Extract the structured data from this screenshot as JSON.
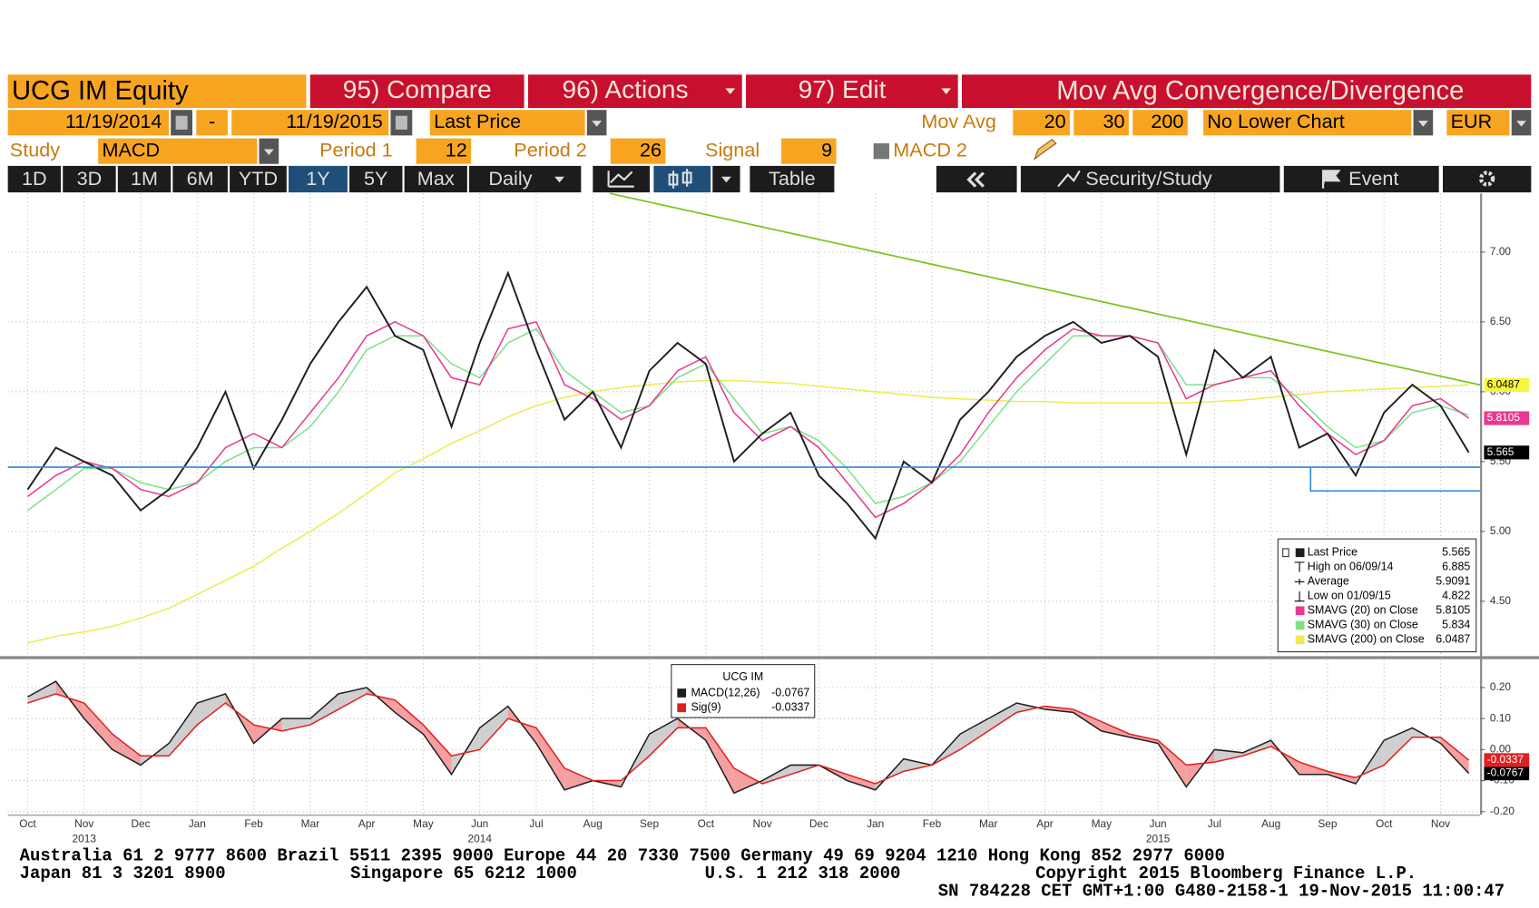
{
  "toolbar": {
    "ticker": "UCG IM Equity",
    "compare": "95) Compare",
    "actions": "96) Actions",
    "edit": "97) Edit",
    "study_title": "Mov Avg Convergence/Divergence",
    "start_date": "11/19/2014",
    "dash": "-",
    "end_date": "11/19/2015",
    "field": "Last Price",
    "mov_avg_label": "Mov Avg",
    "mov_avgs": [
      20,
      30,
      200
    ],
    "lower_chart": "No Lower Chart",
    "currency": "EUR",
    "study_label": "Study",
    "study": "MACD",
    "period1_label": "Period 1",
    "period1": 12,
    "period2_label": "Period 2",
    "period2": 26,
    "signal_label": "Signal",
    "signal": 9,
    "macd2": "MACD 2",
    "ranges": [
      "1D",
      "3D",
      "1M",
      "6M",
      "YTD",
      "1Y",
      "5Y",
      "Max"
    ],
    "frequency": "Daily",
    "table": "Table",
    "security_study": "Security/Study",
    "event": "Event"
  },
  "chart_data": [
    {
      "type": "line",
      "grid": true,
      "xlim": [
        -0.35,
        25.7
      ],
      "ylim": [
        4.11,
        7.42
      ],
      "yticks": [
        {
          "value": 4.5,
          "label": "4.50"
        },
        {
          "value": 5,
          "label": "5.00"
        },
        {
          "value": 5.5,
          "label": "5.50"
        },
        {
          "value": 6,
          "label": "6.00"
        },
        {
          "value": 6.5,
          "label": "6.50"
        },
        {
          "value": 7,
          "label": "7.00"
        }
      ],
      "x": [
        0,
        0.5,
        1,
        1.5,
        2,
        2.5,
        3,
        3.5,
        4,
        4.5,
        5,
        5.5,
        6,
        6.5,
        7,
        7.5,
        8,
        8.5,
        9,
        9.5,
        10,
        10.5,
        11,
        11.5,
        12,
        12.5,
        13,
        13.5,
        14,
        14.5,
        15,
        15.5,
        16,
        16.5,
        17,
        17.5,
        18,
        18.5,
        19,
        19.5,
        20,
        20.5,
        21,
        21.5,
        22,
        22.5,
        23,
        23.5,
        24,
        24.5,
        25,
        25.5
      ],
      "series": [
        {
          "name": "Last Price",
          "color": "#1f1f1f",
          "values": [
            5.3,
            5.6,
            5.5,
            5.4,
            5.15,
            5.3,
            5.6,
            6.0,
            5.45,
            5.8,
            6.2,
            6.5,
            6.75,
            6.4,
            6.3,
            5.75,
            6.35,
            6.85,
            6.3,
            5.8,
            6.0,
            5.6,
            6.15,
            6.35,
            6.2,
            5.5,
            5.7,
            5.85,
            5.4,
            5.2,
            4.95,
            5.5,
            5.35,
            5.8,
            6.0,
            6.25,
            6.4,
            6.5,
            6.35,
            6.4,
            6.25,
            5.55,
            6.3,
            6.1,
            6.25,
            5.6,
            5.7,
            5.4,
            5.85,
            6.05,
            5.9,
            5.565
          ]
        },
        {
          "name": "SMAVG (20) on Close",
          "color": "#e8388f",
          "values": [
            5.25,
            5.4,
            5.5,
            5.45,
            5.3,
            5.25,
            5.35,
            5.6,
            5.7,
            5.6,
            5.85,
            6.1,
            6.4,
            6.5,
            6.4,
            6.1,
            6.05,
            6.45,
            6.5,
            6.05,
            5.95,
            5.8,
            5.9,
            6.15,
            6.25,
            5.85,
            5.65,
            5.75,
            5.6,
            5.35,
            5.1,
            5.2,
            5.35,
            5.55,
            5.85,
            6.1,
            6.3,
            6.45,
            6.4,
            6.4,
            6.35,
            5.95,
            6.05,
            6.1,
            6.15,
            5.9,
            5.7,
            5.55,
            5.65,
            5.9,
            5.95,
            5.8105
          ]
        },
        {
          "name": "SMAVG (30) on Close",
          "color": "#7fe08a",
          "values": [
            5.15,
            5.3,
            5.45,
            5.45,
            5.35,
            5.3,
            5.35,
            5.5,
            5.6,
            5.6,
            5.75,
            6.0,
            6.3,
            6.4,
            6.4,
            6.2,
            6.1,
            6.35,
            6.45,
            6.15,
            6.0,
            5.85,
            5.9,
            6.1,
            6.2,
            5.95,
            5.7,
            5.75,
            5.65,
            5.45,
            5.2,
            5.25,
            5.35,
            5.5,
            5.75,
            6.0,
            6.2,
            6.4,
            6.4,
            6.4,
            6.35,
            6.05,
            6.05,
            6.1,
            6.1,
            5.95,
            5.75,
            5.6,
            5.65,
            5.85,
            5.9,
            5.834
          ]
        },
        {
          "name": "SMAVG (200) on Close",
          "color": "#ecec50",
          "values": [
            4.2,
            4.25,
            4.28,
            4.32,
            4.38,
            4.45,
            4.55,
            4.65,
            4.75,
            4.88,
            5.0,
            5.13,
            5.27,
            5.42,
            5.52,
            5.63,
            5.72,
            5.82,
            5.9,
            5.96,
            6.0,
            6.03,
            6.05,
            6.07,
            6.08,
            6.08,
            6.07,
            6.06,
            6.04,
            6.02,
            6.0,
            5.98,
            5.96,
            5.95,
            5.94,
            5.93,
            5.93,
            5.92,
            5.92,
            5.92,
            5.92,
            5.92,
            5.93,
            5.94,
            5.96,
            5.98,
            6.0,
            6.01,
            6.02,
            6.03,
            6.04,
            6.0487
          ]
        }
      ],
      "stats": [
        {
          "label": "High on 06/09/14",
          "value": 6.885
        },
        {
          "label": "Average",
          "value": 5.9091
        },
        {
          "label": "Low on 01/09/15",
          "value": 4.822
        }
      ],
      "trendlines": [
        {
          "color": "#7cc41c",
          "x": [
            10.3,
            25.7
          ],
          "y": [
            7.42,
            6.0487
          ]
        },
        {
          "color": "#3a8ee0",
          "x": [
            -0.35,
            25.7
          ],
          "y": [
            5.46,
            5.46
          ]
        },
        {
          "color": "#3a8ee0",
          "x": [
            22.7,
            22.7,
            25.7
          ],
          "y": [
            5.46,
            5.29,
            5.29
          ]
        }
      ]
    },
    {
      "type": "line",
      "title": "UCG IM",
      "grid": true,
      "xlim": [
        -0.35,
        25.7
      ],
      "ylim": [
        -0.21,
        0.29
      ],
      "xticks": [
        {
          "value": 0,
          "label": "Oct"
        },
        {
          "value": 1,
          "label": "Nov"
        },
        {
          "value": 2,
          "label": "Dec"
        },
        {
          "value": 3,
          "label": "Jan"
        },
        {
          "value": 4,
          "label": "Feb"
        },
        {
          "value": 5,
          "label": "Mar"
        },
        {
          "value": 6,
          "label": "Apr"
        },
        {
          "value": 7,
          "label": "May"
        },
        {
          "value": 8,
          "label": "Jun"
        },
        {
          "value": 9,
          "label": "Jul"
        },
        {
          "value": 10,
          "label": "Aug"
        },
        {
          "value": 11,
          "label": "Sep"
        },
        {
          "value": 12,
          "label": "Oct"
        },
        {
          "value": 13,
          "label": "Nov"
        },
        {
          "value": 14,
          "label": "Dec"
        },
        {
          "value": 15,
          "label": "Jan"
        },
        {
          "value": 16,
          "label": "Feb"
        },
        {
          "value": 17,
          "label": "Mar"
        },
        {
          "value": 18,
          "label": "Apr"
        },
        {
          "value": 19,
          "label": "May"
        },
        {
          "value": 20,
          "label": "Jun"
        },
        {
          "value": 21,
          "label": "Jul"
        },
        {
          "value": 22,
          "label": "Aug"
        },
        {
          "value": 23,
          "label": "Sep"
        },
        {
          "value": 24,
          "label": "Oct"
        },
        {
          "value": 25,
          "label": "Nov"
        }
      ],
      "year_labels": [
        {
          "value": 1,
          "label": "2013"
        },
        {
          "value": 8,
          "label": "2014"
        },
        {
          "value": 20,
          "label": "2015"
        }
      ],
      "yticks": [
        {
          "value": -0.2,
          "label": "-0.20"
        },
        {
          "value": -0.1,
          "label": "-0.10"
        },
        {
          "value": 0,
          "label": "0.00"
        },
        {
          "value": 0.1,
          "label": "0.10"
        },
        {
          "value": 0.2,
          "label": "0.20"
        }
      ],
      "x": [
        0,
        0.5,
        1,
        1.5,
        2,
        2.5,
        3,
        3.5,
        4,
        4.5,
        5,
        5.5,
        6,
        6.5,
        7,
        7.5,
        8,
        8.5,
        9,
        9.5,
        10,
        10.5,
        11,
        11.5,
        12,
        12.5,
        13,
        13.5,
        14,
        14.5,
        15,
        15.5,
        16,
        16.5,
        17,
        17.5,
        18,
        18.5,
        19,
        19.5,
        20,
        20.5,
        21,
        21.5,
        22,
        22.5,
        23,
        23.5,
        24,
        24.5,
        25,
        25.5
      ],
      "series": [
        {
          "name": "MACD(12,26)",
          "color": "#1f1f1f",
          "values": [
            0.17,
            0.22,
            0.1,
            0,
            -0.05,
            0.02,
            0.15,
            0.18,
            0.02,
            0.1,
            0.1,
            0.18,
            0.2,
            0.12,
            0.05,
            -0.08,
            0.07,
            0.14,
            0.02,
            -0.13,
            -0.1,
            -0.12,
            0.05,
            0.1,
            0.03,
            -0.14,
            -0.1,
            -0.05,
            -0.05,
            -0.1,
            -0.13,
            -0.03,
            -0.05,
            0.05,
            0.1,
            0.15,
            0.13,
            0.12,
            0.06,
            0.04,
            0.02,
            -0.12,
            0,
            -0.01,
            0.03,
            -0.08,
            -0.08,
            -0.11,
            0.03,
            0.07,
            0.02,
            -0.0767
          ]
        },
        {
          "name": "Sig(9)",
          "color": "#e02020",
          "values": [
            0.15,
            0.18,
            0.15,
            0.05,
            -0.02,
            -0.02,
            0.08,
            0.15,
            0.08,
            0.06,
            0.08,
            0.13,
            0.18,
            0.16,
            0.08,
            -0.02,
            0,
            0.1,
            0.07,
            -0.06,
            -0.1,
            -0.1,
            -0.02,
            0.07,
            0.07,
            -0.06,
            -0.11,
            -0.08,
            -0.05,
            -0.08,
            -0.11,
            -0.07,
            -0.05,
            0,
            0.06,
            0.12,
            0.14,
            0.13,
            0.09,
            0.05,
            0.03,
            -0.05,
            -0.04,
            -0.02,
            0.01,
            -0.04,
            -0.07,
            -0.09,
            -0.05,
            0.04,
            0.04,
            -0.0337
          ]
        }
      ]
    }
  ],
  "footer": {
    "line1": "Australia 61 2 9777 8600 Brazil 5511 2395 9000 Europe 44 20 7330 7500 Germany 49 69 9204 1210 Hong Kong 852 2977 6000",
    "line2": [
      "Japan 81 3 3201 8900",
      "Singapore 65 6212 1000",
      "U.S. 1 212 318 2000",
      "Copyright 2015 Bloomberg Finance L.P."
    ],
    "line3": "SN 784228 CET  GMT+1:00 G480-2158-1 19-Nov-2015 11:00:47"
  }
}
